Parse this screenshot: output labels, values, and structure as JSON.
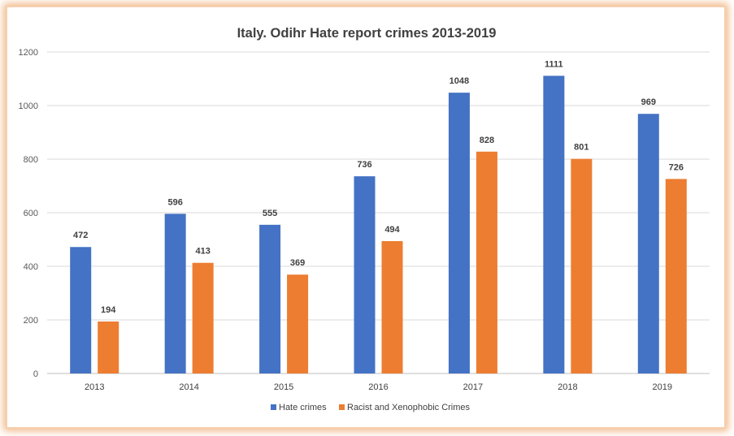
{
  "chart_data": {
    "type": "bar",
    "title": "Italy. Odihr Hate report crimes 2013-2019",
    "categories": [
      "2013",
      "2014",
      "2015",
      "2016",
      "2017",
      "2018",
      "2019"
    ],
    "series": [
      {
        "name": "Hate crimes",
        "color": "#4472C4",
        "values": [
          472,
          596,
          555,
          736,
          1048,
          1111,
          969
        ]
      },
      {
        "name": "Racist and Xenophobic Crimes",
        "color": "#ED7D31",
        "values": [
          194,
          413,
          369,
          494,
          828,
          801,
          726
        ]
      }
    ],
    "ylim": [
      0,
      1200
    ],
    "yticks": [
      "0",
      "200",
      "400",
      "600",
      "800",
      "1000",
      "1200"
    ],
    "grid": true,
    "legend_position": "bottom"
  }
}
